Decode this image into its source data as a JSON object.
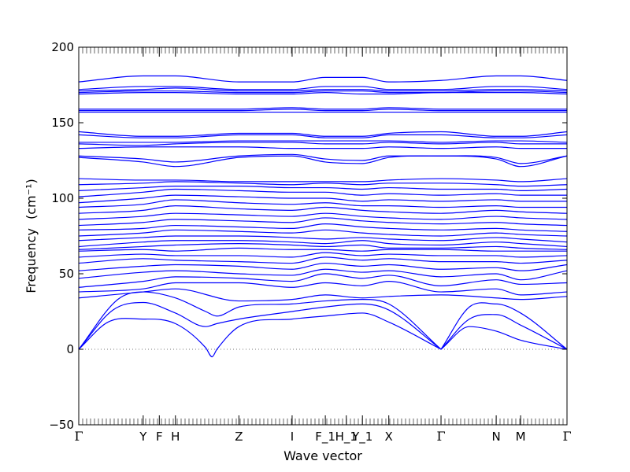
{
  "chart_data": {
    "type": "line",
    "title": "",
    "xlabel": "Wave vector",
    "ylabel": "Frequency",
    "ylabel_unit": "(cm⁻¹)",
    "ylim": [
      -50,
      200
    ],
    "yticks": [
      -50,
      0,
      50,
      100,
      150,
      200
    ],
    "xlim": [
      0,
      1
    ],
    "grid": false,
    "line_color": "#0000ff",
    "zero_line": {
      "y": 0,
      "style": "dotted",
      "color": "#777777"
    },
    "xticks": [
      {
        "x": 0.0,
        "label": "Γ"
      },
      {
        "x": 0.132,
        "label": "Y"
      },
      {
        "x": 0.165,
        "label": "F"
      },
      {
        "x": 0.198,
        "label": "H"
      },
      {
        "x": 0.328,
        "label": "Z"
      },
      {
        "x": 0.437,
        "label": "I"
      },
      {
        "x": 0.505,
        "label": "F_1"
      },
      {
        "x": 0.548,
        "label": "H_1"
      },
      {
        "x": 0.581,
        "label": "Y_1"
      },
      {
        "x": 0.635,
        "label": "X"
      },
      {
        "x": 0.742,
        "label": "Γ"
      },
      {
        "x": 0.855,
        "label": "N"
      },
      {
        "x": 0.905,
        "label": "M"
      },
      {
        "x": 1.0,
        "label": "Γ"
      }
    ],
    "series": [
      {
        "x": [
          0,
          0.06,
          0.132,
          0.198,
          0.26,
          0.273,
          0.283,
          0.328,
          0.437,
          0.505,
          0.581,
          0.635,
          0.742
        ],
        "y": [
          0,
          18,
          20,
          17,
          1,
          -5,
          0,
          15,
          20,
          22,
          24,
          18,
          0
        ]
      },
      {
        "x": [
          0.742,
          0.8,
          0.855,
          0.905,
          1.0
        ],
        "y": [
          0,
          15,
          12,
          6,
          0
        ]
      },
      {
        "x": [
          0,
          0.07,
          0.132,
          0.198,
          0.26,
          0.283,
          0.328,
          0.437,
          0.505,
          0.581,
          0.635,
          0.742
        ],
        "y": [
          0,
          26,
          31,
          24,
          15,
          17,
          20,
          25,
          28,
          30,
          26,
          0
        ]
      },
      {
        "x": [
          0.742,
          0.8,
          0.855,
          0.905,
          1.0
        ],
        "y": [
          0,
          20,
          23,
          16,
          0
        ]
      },
      {
        "x": [
          0,
          0.08,
          0.132,
          0.198,
          0.26,
          0.283,
          0.328,
          0.437,
          0.505,
          0.581,
          0.635,
          0.742
        ],
        "y": [
          0,
          33,
          38,
          34,
          25,
          22,
          28,
          30,
          32,
          33,
          30,
          0
        ]
      },
      {
        "x": [
          0.742,
          0.8,
          0.855,
          0.905,
          1.0
        ],
        "y": [
          0,
          28,
          30,
          24,
          0
        ]
      },
      {
        "x": [
          0,
          0.132,
          0.198,
          0.328,
          0.437,
          0.505,
          0.581,
          0.635,
          0.742,
          0.855,
          0.905,
          1.0
        ],
        "y": [
          34,
          38,
          40,
          32,
          33,
          36,
          34,
          35,
          36,
          34,
          33,
          35
        ]
      },
      {
        "x": [
          0,
          0.132,
          0.198,
          0.328,
          0.437,
          0.505,
          0.581,
          0.635,
          0.742,
          0.855,
          0.905,
          1.0
        ],
        "y": [
          38,
          40,
          44,
          44,
          41,
          44,
          42,
          45,
          38,
          40,
          36,
          38
        ]
      },
      {
        "x": [
          0,
          0.132,
          0.198,
          0.328,
          0.437,
          0.505,
          0.581,
          0.635,
          0.742,
          0.855,
          0.905,
          1.0
        ],
        "y": [
          41,
          45,
          48,
          47,
          45,
          50,
          47,
          49,
          42,
          46,
          43,
          44
        ]
      },
      {
        "x": [
          0,
          0.132,
          0.198,
          0.328,
          0.437,
          0.505,
          0.581,
          0.635,
          0.742,
          0.855,
          0.905,
          1.0
        ],
        "y": [
          47,
          51,
          52,
          50,
          49,
          53,
          51,
          52,
          48,
          50,
          46,
          52
        ]
      },
      {
        "x": [
          0,
          0.132,
          0.198,
          0.328,
          0.437,
          0.505,
          0.581,
          0.635,
          0.742,
          0.855,
          0.905,
          1.0
        ],
        "y": [
          52,
          55,
          56,
          55,
          53,
          57,
          55,
          56,
          53,
          54,
          52,
          56
        ]
      },
      {
        "x": [
          0,
          0.132,
          0.198,
          0.328,
          0.437,
          0.505,
          0.581,
          0.635,
          0.742,
          0.855,
          0.905,
          1.0
        ],
        "y": [
          57,
          60,
          59,
          58,
          57,
          61,
          59,
          60,
          58,
          58,
          57,
          59
        ]
      },
      {
        "x": [
          0,
          0.132,
          0.198,
          0.328,
          0.437,
          0.505,
          0.581,
          0.635,
          0.742,
          0.855,
          0.905,
          1.0
        ],
        "y": [
          61,
          63,
          62,
          62,
          61,
          64,
          62,
          63,
          62,
          62,
          61,
          62
        ]
      },
      {
        "x": [
          0,
          0.132,
          0.198,
          0.328,
          0.437,
          0.505,
          0.581,
          0.635,
          0.742,
          0.855,
          0.905,
          1.0
        ],
        "y": [
          65,
          66,
          65,
          67,
          66,
          66,
          65,
          66,
          66,
          65,
          65,
          65
        ]
      },
      {
        "x": [
          0,
          0.132,
          0.198,
          0.328,
          0.437,
          0.505,
          0.581,
          0.635,
          0.742,
          0.855,
          0.905,
          1.0
        ],
        "y": [
          66,
          68,
          69,
          70,
          69,
          68,
          69,
          67,
          67,
          68,
          67,
          66
        ]
      },
      {
        "x": [
          0,
          0.132,
          0.198,
          0.328,
          0.437,
          0.505,
          0.581,
          0.635,
          0.742,
          0.855,
          0.905,
          1.0
        ],
        "y": [
          68,
          71,
          72,
          72,
          71,
          70,
          72,
          70,
          69,
          71,
          70,
          68
        ]
      },
      {
        "x": [
          0,
          0.132,
          0.198,
          0.328,
          0.437,
          0.505,
          0.581,
          0.635,
          0.742,
          0.855,
          0.905,
          1.0
        ],
        "y": [
          72,
          74,
          75,
          75,
          74,
          73,
          74,
          73,
          72,
          74,
          73,
          71
        ]
      },
      {
        "x": [
          0,
          0.132,
          0.198,
          0.328,
          0.437,
          0.505,
          0.581,
          0.635,
          0.742,
          0.855,
          0.905,
          1.0
        ],
        "y": [
          75,
          77,
          79,
          78,
          77,
          79,
          77,
          76,
          75,
          77,
          76,
          75
        ]
      },
      {
        "x": [
          0,
          0.132,
          0.198,
          0.328,
          0.437,
          0.505,
          0.581,
          0.635,
          0.742,
          0.855,
          0.905,
          1.0
        ],
        "y": [
          79,
          80,
          82,
          81,
          80,
          83,
          81,
          80,
          79,
          80,
          79,
          78
        ]
      },
      {
        "x": [
          0,
          0.132,
          0.198,
          0.328,
          0.437,
          0.505,
          0.581,
          0.635,
          0.742,
          0.855,
          0.905,
          1.0
        ],
        "y": [
          82,
          84,
          86,
          85,
          84,
          87,
          85,
          84,
          83,
          84,
          83,
          82
        ]
      },
      {
        "x": [
          0,
          0.132,
          0.198,
          0.328,
          0.437,
          0.505,
          0.581,
          0.635,
          0.742,
          0.855,
          0.905,
          1.0
        ],
        "y": [
          86,
          88,
          90,
          89,
          88,
          90,
          88,
          87,
          86,
          88,
          87,
          86
        ]
      },
      {
        "x": [
          0,
          0.132,
          0.198,
          0.328,
          0.437,
          0.505,
          0.581,
          0.635,
          0.742,
          0.855,
          0.905,
          1.0
        ],
        "y": [
          90,
          92,
          95,
          93,
          92,
          94,
          92,
          91,
          90,
          92,
          91,
          90
        ]
      },
      {
        "x": [
          0,
          0.132,
          0.198,
          0.328,
          0.437,
          0.505,
          0.581,
          0.635,
          0.742,
          0.855,
          0.905,
          1.0
        ],
        "y": [
          94,
          96,
          99,
          97,
          96,
          97,
          95,
          95,
          94,
          95,
          94,
          94
        ]
      },
      {
        "x": [
          0,
          0.132,
          0.198,
          0.328,
          0.437,
          0.505,
          0.581,
          0.635,
          0.742,
          0.855,
          0.905,
          1.0
        ],
        "y": [
          97,
          100,
          102,
          101,
          100,
          100,
          98,
          99,
          98,
          99,
          98,
          98
        ]
      },
      {
        "x": [
          0,
          0.132,
          0.198,
          0.328,
          0.437,
          0.505,
          0.581,
          0.635,
          0.742,
          0.855,
          0.905,
          1.0
        ],
        "y": [
          101,
          104,
          106,
          105,
          104,
          104,
          102,
          103,
          102,
          103,
          102,
          102
        ]
      },
      {
        "x": [
          0,
          0.132,
          0.198,
          0.328,
          0.437,
          0.505,
          0.581,
          0.635,
          0.742,
          0.855,
          0.905,
          1.0
        ],
        "y": [
          105,
          107,
          108,
          108,
          107,
          107,
          106,
          107,
          106,
          106,
          105,
          106
        ]
      },
      {
        "x": [
          0,
          0.132,
          0.198,
          0.328,
          0.437,
          0.505,
          0.581,
          0.635,
          0.742,
          0.855,
          0.905,
          1.0
        ],
        "y": [
          109,
          110,
          111,
          110,
          109,
          110,
          109,
          110,
          110,
          109,
          108,
          109
        ]
      },
      {
        "x": [
          0,
          0.132,
          0.198,
          0.328,
          0.437,
          0.505,
          0.581,
          0.635,
          0.742,
          0.855,
          0.905,
          1.0
        ],
        "y": [
          113,
          112,
          112,
          111,
          111,
          111,
          111,
          112,
          113,
          112,
          111,
          113
        ]
      },
      {
        "x": [
          0,
          0.132,
          0.198,
          0.328,
          0.437,
          0.505,
          0.581,
          0.635,
          0.742,
          0.855,
          0.905,
          1.0
        ],
        "y": [
          127,
          124,
          121,
          127,
          128,
          124,
          123,
          127,
          128,
          126,
          121,
          128
        ]
      },
      {
        "x": [
          0,
          0.132,
          0.198,
          0.328,
          0.437,
          0.505,
          0.581,
          0.635,
          0.742,
          0.855,
          0.905,
          1.0
        ],
        "y": [
          128,
          126,
          124,
          128,
          129,
          126,
          125,
          128,
          128,
          127,
          123,
          128
        ]
      },
      {
        "x": [
          0,
          0.132,
          0.198,
          0.328,
          0.437,
          0.505,
          0.581,
          0.635,
          0.742,
          0.855,
          0.905,
          1.0
        ],
        "y": [
          133,
          134,
          134,
          134,
          133,
          133,
          133,
          134,
          133,
          134,
          133,
          133
        ]
      },
      {
        "x": [
          0,
          0.132,
          0.198,
          0.328,
          0.437,
          0.505,
          0.581,
          0.635,
          0.742,
          0.855,
          0.905,
          1.0
        ],
        "y": [
          136,
          135,
          136,
          137,
          137,
          136,
          136,
          137,
          136,
          137,
          136,
          136
        ]
      },
      {
        "x": [
          0,
          0.132,
          0.198,
          0.328,
          0.437,
          0.505,
          0.581,
          0.635,
          0.742,
          0.855,
          0.905,
          1.0
        ],
        "y": [
          137,
          137,
          137,
          138,
          138,
          138,
          138,
          138,
          137,
          138,
          138,
          137
        ]
      },
      {
        "x": [
          0,
          0.132,
          0.198,
          0.328,
          0.437,
          0.505,
          0.581,
          0.635,
          0.742,
          0.855,
          0.905,
          1.0
        ],
        "y": [
          142,
          140,
          140,
          142,
          142,
          140,
          140,
          142,
          142,
          140,
          140,
          142
        ]
      },
      {
        "x": [
          0,
          0.132,
          0.198,
          0.328,
          0.437,
          0.505,
          0.581,
          0.635,
          0.742,
          0.855,
          0.905,
          1.0
        ],
        "y": [
          144,
          141,
          141,
          143,
          143,
          141,
          141,
          143,
          144,
          141,
          141,
          144
        ]
      },
      {
        "x": [
          0,
          0.132,
          0.198,
          0.328,
          0.437,
          0.505,
          0.581,
          0.635,
          0.742,
          0.855,
          0.905,
          1.0
        ],
        "y": [
          157,
          157,
          157,
          157,
          157,
          157,
          157,
          157,
          157,
          157,
          157,
          157
        ]
      },
      {
        "x": [
          0,
          0.132,
          0.198,
          0.328,
          0.437,
          0.505,
          0.581,
          0.635,
          0.742,
          0.855,
          0.905,
          1.0
        ],
        "y": [
          158,
          158,
          158,
          158,
          159,
          158,
          158,
          159,
          158,
          158,
          158,
          158
        ]
      },
      {
        "x": [
          0,
          0.132,
          0.198,
          0.328,
          0.437,
          0.505,
          0.581,
          0.635,
          0.742,
          0.855,
          0.905,
          1.0
        ],
        "y": [
          159,
          159,
          159,
          159,
          160,
          159,
          159,
          160,
          159,
          159,
          159,
          159
        ]
      },
      {
        "x": [
          0,
          0.132,
          0.198,
          0.328,
          0.437,
          0.505,
          0.581,
          0.635,
          0.742,
          0.855,
          0.905,
          1.0
        ],
        "y": [
          169,
          170,
          170,
          169,
          169,
          170,
          169,
          169,
          170,
          170,
          170,
          169
        ]
      },
      {
        "x": [
          0,
          0.132,
          0.198,
          0.328,
          0.437,
          0.505,
          0.581,
          0.635,
          0.742,
          0.855,
          0.905,
          1.0
        ],
        "y": [
          170,
          171,
          171,
          170,
          170,
          171,
          171,
          170,
          170,
          171,
          171,
          170
        ]
      },
      {
        "x": [
          0,
          0.132,
          0.198,
          0.328,
          0.437,
          0.505,
          0.581,
          0.635,
          0.742,
          0.855,
          0.905,
          1.0
        ],
        "y": [
          171,
          172,
          173,
          171,
          171,
          172,
          172,
          171,
          171,
          172,
          172,
          171
        ]
      },
      {
        "x": [
          0,
          0.132,
          0.198,
          0.328,
          0.437,
          0.505,
          0.581,
          0.635,
          0.742,
          0.855,
          0.905,
          1.0
        ],
        "y": [
          172,
          174,
          174,
          172,
          172,
          174,
          174,
          172,
          172,
          174,
          174,
          172
        ]
      },
      {
        "x": [
          0,
          0.132,
          0.198,
          0.328,
          0.437,
          0.505,
          0.581,
          0.635,
          0.742,
          0.855,
          0.905,
          1.0
        ],
        "y": [
          177,
          181,
          181,
          177,
          177,
          180,
          180,
          177,
          178,
          181,
          181,
          178
        ]
      }
    ]
  }
}
